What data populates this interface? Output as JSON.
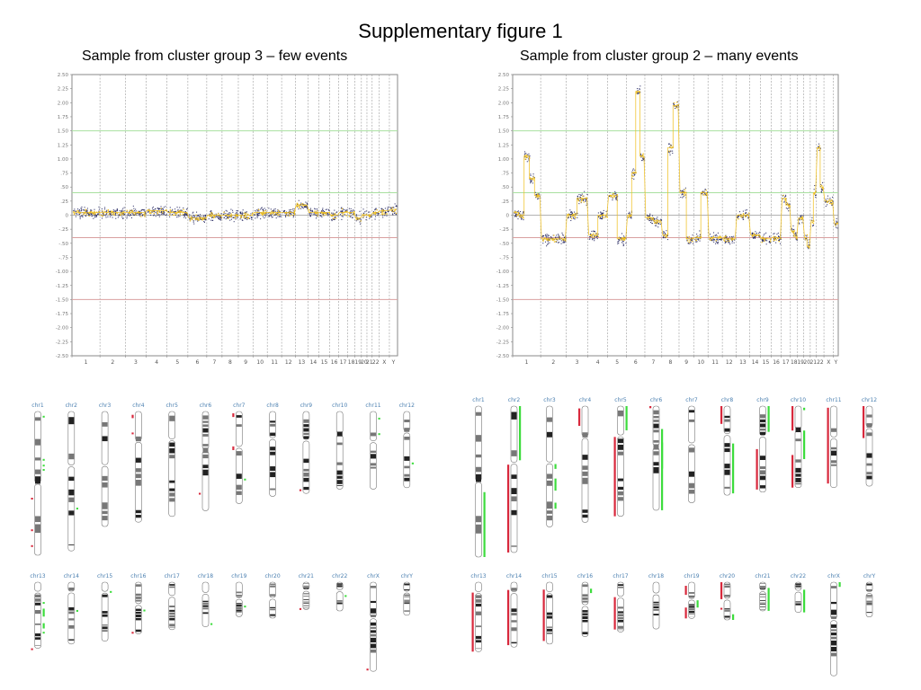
{
  "figure": {
    "title": "Supplementary figure 1",
    "left_subtitle": "Sample from cluster group 3 – few events",
    "right_subtitle": "Sample from cluster group 2 – many events"
  },
  "colors": {
    "gain_threshold": "#a8e0a0",
    "loss_threshold": "#d9a0a0",
    "points": "#1c1f5a",
    "segments": "#f0c020",
    "gain_mark": "#3ddc3d",
    "loss_mark": "#d8283c",
    "chr_label": "#4a7fb0"
  },
  "chart_data": [
    {
      "type": "scatter",
      "title": "Sample from cluster group 3 – few events",
      "ylim": [
        -2.5,
        2.5
      ],
      "yticks": [
        "2.50",
        "2.25",
        "2.00",
        "1.75",
        "1.50",
        "1.25",
        "1.00",
        ".75",
        ".50",
        ".25",
        "0",
        "-.25",
        "-.50",
        "-.75",
        "-1.00",
        "-1.25",
        "-1.50",
        "-1.75",
        "-2.00",
        "-2.25",
        "-2.50"
      ],
      "xticks": [
        "1",
        "2",
        "3",
        "4",
        "5",
        "6",
        "7",
        "8",
        "9",
        "10",
        "11",
        "12",
        "13",
        "14",
        "15",
        "16",
        "17",
        "18",
        "19",
        "20",
        "21",
        "22",
        "X",
        "Y"
      ],
      "thresholds": {
        "gain_high": 1.5,
        "gain": 0.4,
        "loss": -0.4,
        "loss_high": -1.5
      },
      "segments": [
        {
          "chr": "1",
          "value": 0.05
        },
        {
          "chr": "2",
          "value": 0.05
        },
        {
          "chr": "3",
          "value": 0.05
        },
        {
          "chr": "4",
          "value": 0.08
        },
        {
          "chr": "5",
          "value": 0.05
        },
        {
          "chr": "6",
          "value": -0.05
        },
        {
          "chr": "7",
          "value": 0.0
        },
        {
          "chr": "8",
          "value": 0.0
        },
        {
          "chr": "9",
          "value": 0.0
        },
        {
          "chr": "10",
          "value": 0.05
        },
        {
          "chr": "11",
          "value": 0.05
        },
        {
          "chr": "12",
          "value": 0.05
        },
        {
          "chr": "13",
          "value": 0.18
        },
        {
          "chr": "14",
          "value": 0.05
        },
        {
          "chr": "15",
          "value": 0.05
        },
        {
          "chr": "16",
          "value": 0.0
        },
        {
          "chr": "17",
          "value": 0.05
        },
        {
          "chr": "18",
          "value": 0.05
        },
        {
          "chr": "19",
          "value": -0.05
        },
        {
          "chr": "20",
          "value": 0.0
        },
        {
          "chr": "21",
          "value": 0.0
        },
        {
          "chr": "22",
          "value": 0.05
        },
        {
          "chr": "X",
          "value": 0.08
        },
        {
          "chr": "Y",
          "value": 0.1
        }
      ]
    },
    {
      "type": "scatter",
      "title": "Sample from cluster group 2 – many events",
      "ylim": [
        -2.5,
        2.5
      ],
      "yticks": [
        "2.50",
        "2.25",
        "2.00",
        "1.75",
        "1.50",
        "1.25",
        "1.00",
        ".75",
        ".50",
        ".25",
        "0",
        "-.25",
        "-.50",
        "-.75",
        "-1.00",
        "-1.25",
        "-1.50",
        "-1.75",
        "-2.00",
        "-2.25",
        "-2.50"
      ],
      "xticks": [
        "1",
        "2",
        "3",
        "4",
        "5",
        "6",
        "7",
        "8",
        "9",
        "10",
        "11",
        "12",
        "13",
        "14",
        "15",
        "16",
        "17",
        "18",
        "19",
        "20",
        "21",
        "22",
        "X",
        "Y"
      ],
      "thresholds": {
        "gain_high": 1.5,
        "gain": 0.4,
        "loss": -0.4,
        "loss_high": -1.5
      },
      "segments": [
        {
          "chr": "1",
          "parts": [
            0.05,
            0.0,
            1.05,
            0.65,
            0.35
          ]
        },
        {
          "chr": "2",
          "parts": [
            -0.42
          ]
        },
        {
          "chr": "3",
          "parts": [
            0.0,
            0.3
          ]
        },
        {
          "chr": "4",
          "parts": [
            -0.35,
            0.0
          ]
        },
        {
          "chr": "5",
          "parts": [
            0.35,
            -0.42
          ]
        },
        {
          "chr": "6",
          "parts": [
            0.0,
            0.75,
            2.2,
            1.05
          ]
        },
        {
          "chr": "7",
          "parts": [
            -0.05,
            -0.1
          ]
        },
        {
          "chr": "8",
          "parts": [
            -0.35,
            1.2,
            1.95
          ]
        },
        {
          "chr": "9",
          "parts": [
            0.4,
            -0.42
          ]
        },
        {
          "chr": "10",
          "parts": [
            -0.4,
            0.4
          ]
        },
        {
          "chr": "11",
          "parts": [
            -0.4
          ]
        },
        {
          "chr": "12",
          "parts": [
            -0.42
          ]
        },
        {
          "chr": "13",
          "parts": [
            0.0
          ]
        },
        {
          "chr": "14",
          "parts": [
            -0.35
          ]
        },
        {
          "chr": "15",
          "parts": [
            -0.42
          ]
        },
        {
          "chr": "16",
          "parts": [
            -0.4
          ]
        },
        {
          "chr": "17",
          "parts": [
            0.3,
            0.18
          ]
        },
        {
          "chr": "18",
          "parts": [
            -0.28,
            -0.38
          ]
        },
        {
          "chr": "19",
          "parts": [
            -0.05
          ]
        },
        {
          "chr": "20",
          "parts": [
            -0.4,
            -0.55
          ]
        },
        {
          "chr": "21",
          "parts": [
            -0.1,
            0.4
          ]
        },
        {
          "chr": "22",
          "parts": [
            1.2,
            0.5
          ]
        },
        {
          "chr": "X",
          "parts": [
            0.25
          ]
        },
        {
          "chr": "Y",
          "parts": [
            -0.15
          ]
        }
      ]
    }
  ],
  "karyogram_left": {
    "row1": [
      "chr1",
      "chr2",
      "chr3",
      "chr4",
      "chr5",
      "chr6",
      "chr7",
      "chr8",
      "chr9",
      "chr10",
      "chr11",
      "chr12"
    ],
    "row2": [
      "chr13",
      "chr14",
      "chr15",
      "chr16",
      "chr17",
      "chr18",
      "chr19",
      "chr20",
      "chr21",
      "chr22",
      "chrX",
      "chrY"
    ]
  },
  "karyogram_right": {
    "row1": [
      "chr1",
      "chr2",
      "chr3",
      "chr4",
      "chr5",
      "chr6",
      "chr7",
      "chr8",
      "chr9",
      "chr10",
      "chr11",
      "chr12"
    ],
    "row2": [
      "chr13",
      "chr14",
      "chr15",
      "chr16",
      "chr17",
      "chr18",
      "chr19",
      "chr20",
      "chr21",
      "chr22",
      "chrX",
      "chrY"
    ]
  }
}
